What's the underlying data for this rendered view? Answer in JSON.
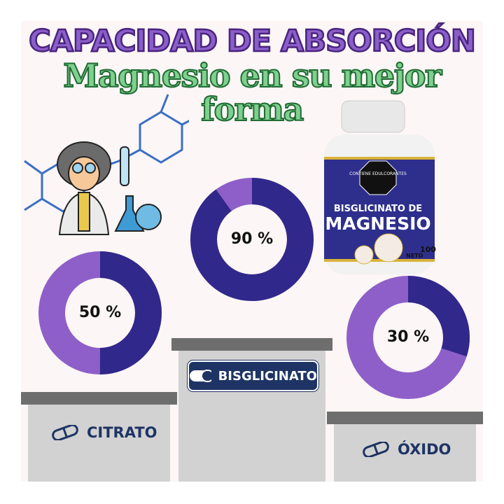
{
  "header": {
    "title": "CAPACIDAD DE ABSORCIÓN",
    "subtitle": "Magnesio en su mejor forma"
  },
  "product": {
    "badge": "CONTIENE EDULCORANTES",
    "name_line1": "BISGLICINATO DE",
    "name_line2": "MAGNESIO",
    "net_label": "NETO",
    "net_count": "100"
  },
  "colors": {
    "dark": "#30288a",
    "light": "#8e5fc8",
    "navy": "#1e3464",
    "background": "#fcf6f6"
  },
  "chart_data": [
    {
      "type": "pie",
      "style": "donut",
      "category": "CITRATO",
      "value": 50,
      "label": "50 %"
    },
    {
      "type": "pie",
      "style": "donut",
      "category": "BISGLICINATO",
      "value": 90,
      "label": "90 %"
    },
    {
      "type": "pie",
      "style": "donut",
      "category": "ÓXIDO",
      "value": 30,
      "label": "30 %"
    }
  ],
  "podium": {
    "citrato": "CITRATO",
    "bisglicinato": "BISGLICINATO",
    "oxido": "ÓXIDO"
  }
}
